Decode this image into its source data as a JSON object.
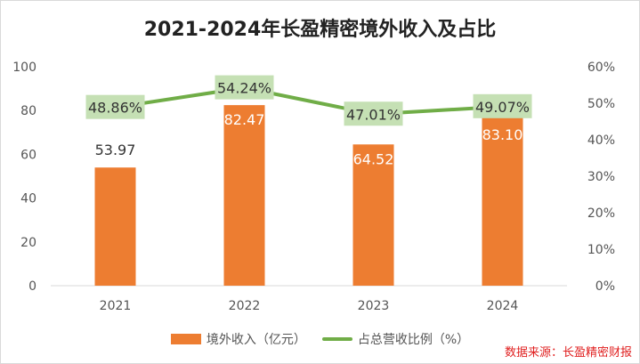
{
  "chart_data": {
    "type": "bar",
    "title": "2021-2024年长盈精密境外收入及占比",
    "categories": [
      "2021",
      "2022",
      "2023",
      "2024"
    ],
    "series": [
      {
        "name": "境外收入（亿元）",
        "type": "bar",
        "axis": "left",
        "color": "#ed7d31",
        "values": [
          53.97,
          82.47,
          64.52,
          83.1
        ],
        "labels": [
          "53.97",
          "82.47",
          "64.52",
          "83.10"
        ]
      },
      {
        "name": "占总营收比例（%）",
        "type": "line",
        "axis": "right",
        "color": "#70ad47",
        "values": [
          48.86,
          54.24,
          47.01,
          49.07
        ],
        "labels": [
          "48.86%",
          "54.24%",
          "47.01%",
          "49.07%"
        ]
      }
    ],
    "left_axis": {
      "range": [
        0,
        100
      ],
      "ticks": [
        "0",
        "20",
        "40",
        "60",
        "80",
        "100"
      ]
    },
    "right_axis": {
      "range": [
        0,
        60
      ],
      "ticks": [
        "0%",
        "10%",
        "20%",
        "30%",
        "40%",
        "50%",
        "60%"
      ]
    },
    "grid": false,
    "legend": "bottom",
    "source": "数据来源：长盈精密财报"
  }
}
